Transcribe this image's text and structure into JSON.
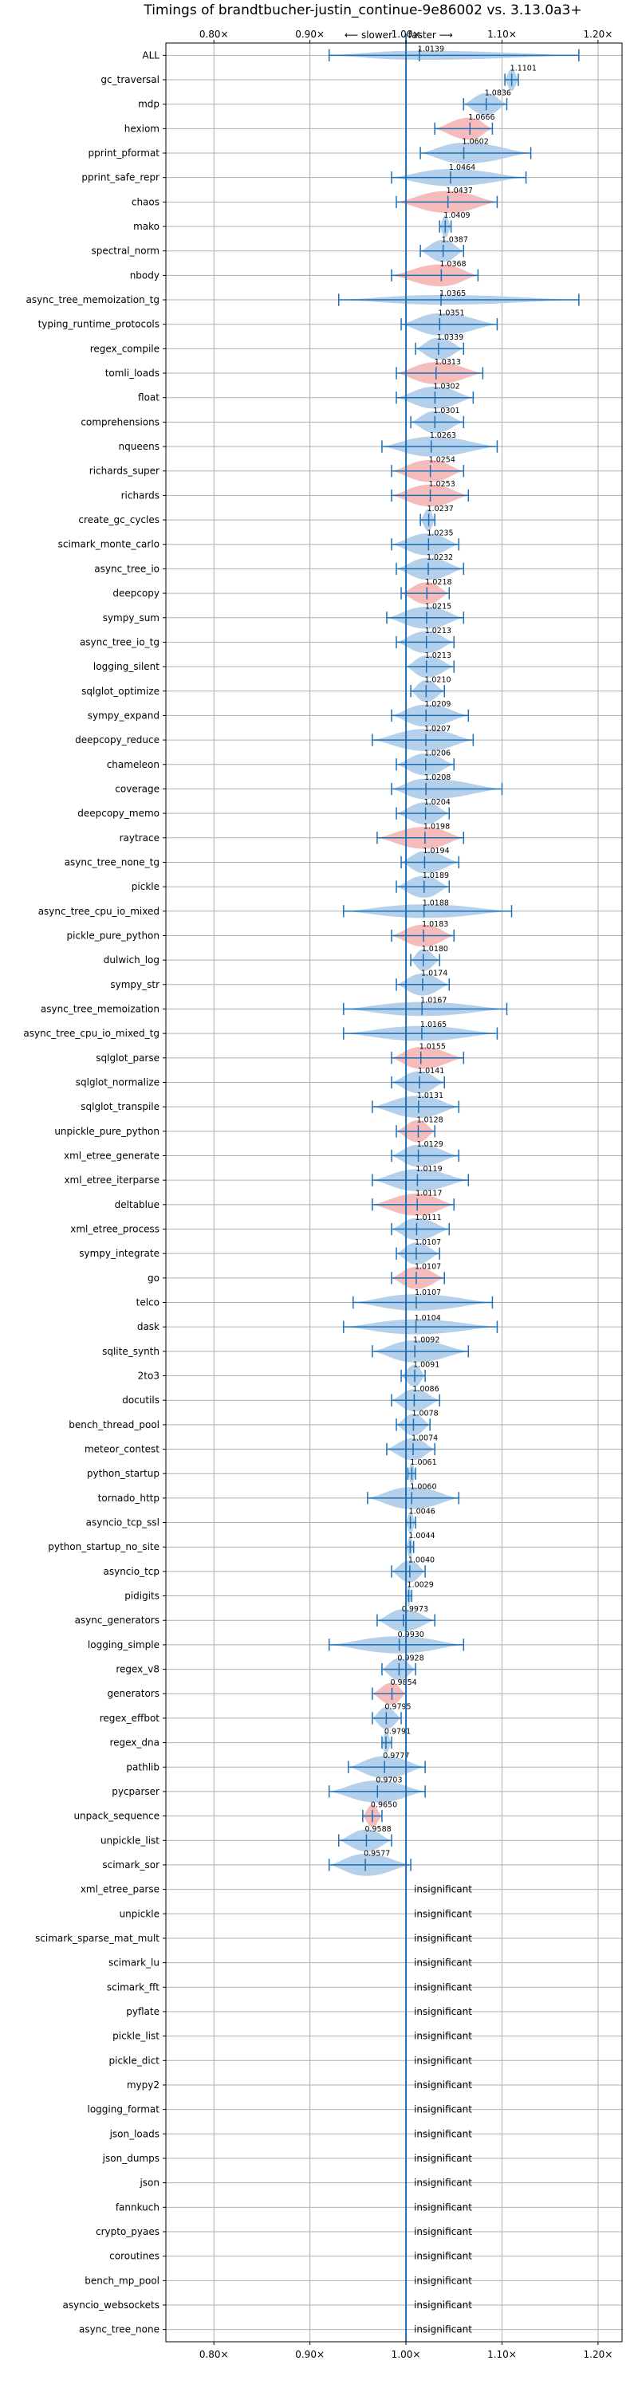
{
  "chart_data": {
    "type": "violin",
    "title": "Timings of brandtbucher-justin_continue-9e86002 vs. 3.13.0a3+",
    "subtitle_left": "⟵ slower",
    "subtitle_right": "faster ⟶",
    "xlim": [
      0.75,
      1.225
    ],
    "x_ticks": [
      0.8,
      0.9,
      1.0,
      1.1,
      1.2
    ],
    "x_tick_labels": [
      "0.80×",
      "0.90×",
      "1.00×",
      "1.10×",
      "1.20×"
    ],
    "grid": true,
    "significant_color": "#a8c8e6",
    "slower_color": "#f4b0b0",
    "line_color": "#1f6fb4",
    "insignificant_label": "insignificant",
    "benchmarks": [
      {
        "name": "ALL",
        "value": 1.0139,
        "label": "1.0139",
        "lo": 0.92,
        "hi": 1.18
      },
      {
        "name": "gc_traversal",
        "value": 1.1101,
        "label": "1.1101",
        "lo": 1.103,
        "hi": 1.117
      },
      {
        "name": "mdp",
        "value": 1.0836,
        "label": "1.0836",
        "lo": 1.06,
        "hi": 1.105
      },
      {
        "name": "hexiom",
        "value": 1.0666,
        "label": "1.0666",
        "lo": 1.03,
        "hi": 1.09
      },
      {
        "name": "pprint_pformat",
        "value": 1.0602,
        "label": "1.0602",
        "lo": 1.015,
        "hi": 1.13
      },
      {
        "name": "pprint_safe_repr",
        "value": 1.0464,
        "label": "1.0464",
        "lo": 0.985,
        "hi": 1.125
      },
      {
        "name": "chaos",
        "value": 1.0437,
        "label": "1.0437",
        "lo": 0.99,
        "hi": 1.095
      },
      {
        "name": "mako",
        "value": 1.0409,
        "label": "1.0409",
        "lo": 1.035,
        "hi": 1.047
      },
      {
        "name": "spectral_norm",
        "value": 1.0387,
        "label": "1.0387",
        "lo": 1.015,
        "hi": 1.06
      },
      {
        "name": "nbody",
        "value": 1.0368,
        "label": "1.0368",
        "lo": 0.985,
        "hi": 1.075
      },
      {
        "name": "async_tree_memoization_tg",
        "value": 1.0365,
        "label": "1.0365",
        "lo": 0.93,
        "hi": 1.18
      },
      {
        "name": "typing_runtime_protocols",
        "value": 1.0351,
        "label": "1.0351",
        "lo": 0.995,
        "hi": 1.095
      },
      {
        "name": "regex_compile",
        "value": 1.0339,
        "label": "1.0339",
        "lo": 1.01,
        "hi": 1.06
      },
      {
        "name": "tomli_loads",
        "value": 1.0313,
        "label": "1.0313",
        "lo": 0.99,
        "hi": 1.08
      },
      {
        "name": "float",
        "value": 1.0302,
        "label": "1.0302",
        "lo": 0.99,
        "hi": 1.07
      },
      {
        "name": "comprehensions",
        "value": 1.0301,
        "label": "1.0301",
        "lo": 1.005,
        "hi": 1.06
      },
      {
        "name": "nqueens",
        "value": 1.0263,
        "label": "1.0263",
        "lo": 0.975,
        "hi": 1.095
      },
      {
        "name": "richards_super",
        "value": 1.0254,
        "label": "1.0254",
        "lo": 0.985,
        "hi": 1.06
      },
      {
        "name": "richards",
        "value": 1.0253,
        "label": "1.0253",
        "lo": 0.985,
        "hi": 1.065
      },
      {
        "name": "create_gc_cycles",
        "value": 1.0237,
        "label": "1.0237",
        "lo": 1.015,
        "hi": 1.03
      },
      {
        "name": "scimark_monte_carlo",
        "value": 1.0235,
        "label": "1.0235",
        "lo": 0.985,
        "hi": 1.055
      },
      {
        "name": "async_tree_io",
        "value": 1.0232,
        "label": "1.0232",
        "lo": 0.99,
        "hi": 1.06
      },
      {
        "name": "deepcopy",
        "value": 1.0218,
        "label": "1.0218",
        "lo": 0.995,
        "hi": 1.045
      },
      {
        "name": "sympy_sum",
        "value": 1.0215,
        "label": "1.0215",
        "lo": 0.98,
        "hi": 1.06
      },
      {
        "name": "async_tree_io_tg",
        "value": 1.0213,
        "label": "1.0213",
        "lo": 0.99,
        "hi": 1.05
      },
      {
        "name": "logging_silent",
        "value": 1.0213,
        "label": "1.0213",
        "lo": 1.0,
        "hi": 1.05
      },
      {
        "name": "sqlglot_optimize",
        "value": 1.021,
        "label": "1.0210",
        "lo": 1.005,
        "hi": 1.04
      },
      {
        "name": "sympy_expand",
        "value": 1.0209,
        "label": "1.0209",
        "lo": 0.985,
        "hi": 1.065
      },
      {
        "name": "deepcopy_reduce",
        "value": 1.0207,
        "label": "1.0207",
        "lo": 0.965,
        "hi": 1.07
      },
      {
        "name": "chameleon",
        "value": 1.0206,
        "label": "1.0206",
        "lo": 0.99,
        "hi": 1.05
      },
      {
        "name": "coverage",
        "value": 1.0208,
        "label": "1.0208",
        "lo": 0.985,
        "hi": 1.1
      },
      {
        "name": "deepcopy_memo",
        "value": 1.0204,
        "label": "1.0204",
        "lo": 0.99,
        "hi": 1.045
      },
      {
        "name": "raytrace",
        "value": 1.0198,
        "label": "1.0198",
        "lo": 0.97,
        "hi": 1.06
      },
      {
        "name": "async_tree_none_tg",
        "value": 1.0194,
        "label": "1.0194",
        "lo": 0.995,
        "hi": 1.055
      },
      {
        "name": "pickle",
        "value": 1.0189,
        "label": "1.0189",
        "lo": 0.99,
        "hi": 1.045
      },
      {
        "name": "async_tree_cpu_io_mixed",
        "value": 1.0188,
        "label": "1.0188",
        "lo": 0.935,
        "hi": 1.11
      },
      {
        "name": "pickle_pure_python",
        "value": 1.0183,
        "label": "1.0183",
        "lo": 0.985,
        "hi": 1.05
      },
      {
        "name": "dulwich_log",
        "value": 1.018,
        "label": "1.0180",
        "lo": 1.005,
        "hi": 1.035
      },
      {
        "name": "sympy_str",
        "value": 1.0174,
        "label": "1.0174",
        "lo": 0.99,
        "hi": 1.045
      },
      {
        "name": "async_tree_memoization",
        "value": 1.0167,
        "label": "1.0167",
        "lo": 0.935,
        "hi": 1.105
      },
      {
        "name": "async_tree_cpu_io_mixed_tg",
        "value": 1.0165,
        "label": "1.0165",
        "lo": 0.935,
        "hi": 1.095
      },
      {
        "name": "sqlglot_parse",
        "value": 1.0155,
        "label": "1.0155",
        "lo": 0.985,
        "hi": 1.06
      },
      {
        "name": "sqlglot_normalize",
        "value": 1.0141,
        "label": "1.0141",
        "lo": 0.985,
        "hi": 1.04
      },
      {
        "name": "sqlglot_transpile",
        "value": 1.0131,
        "label": "1.0131",
        "lo": 0.965,
        "hi": 1.055
      },
      {
        "name": "unpickle_pure_python",
        "value": 1.0128,
        "label": "1.0128",
        "lo": 0.99,
        "hi": 1.03
      },
      {
        "name": "xml_etree_generate",
        "value": 1.0129,
        "label": "1.0129",
        "lo": 0.985,
        "hi": 1.055
      },
      {
        "name": "xml_etree_iterparse",
        "value": 1.0119,
        "label": "1.0119",
        "lo": 0.965,
        "hi": 1.065
      },
      {
        "name": "deltablue",
        "value": 1.0117,
        "label": "1.0117",
        "lo": 0.965,
        "hi": 1.05
      },
      {
        "name": "xml_etree_process",
        "value": 1.0111,
        "label": "1.0111",
        "lo": 0.985,
        "hi": 1.045
      },
      {
        "name": "sympy_integrate",
        "value": 1.0107,
        "label": "1.0107",
        "lo": 0.99,
        "hi": 1.035
      },
      {
        "name": "go",
        "value": 1.0107,
        "label": "1.0107",
        "lo": 0.985,
        "hi": 1.04
      },
      {
        "name": "telco",
        "value": 1.0107,
        "label": "1.0107",
        "lo": 0.945,
        "hi": 1.09
      },
      {
        "name": "dask",
        "value": 1.0104,
        "label": "1.0104",
        "lo": 0.935,
        "hi": 1.095
      },
      {
        "name": "sqlite_synth",
        "value": 1.0092,
        "label": "1.0092",
        "lo": 0.965,
        "hi": 1.065
      },
      {
        "name": "2to3",
        "value": 1.0091,
        "label": "1.0091",
        "lo": 0.995,
        "hi": 1.02
      },
      {
        "name": "docutils",
        "value": 1.0086,
        "label": "1.0086",
        "lo": 0.985,
        "hi": 1.035
      },
      {
        "name": "bench_thread_pool",
        "value": 1.0078,
        "label": "1.0078",
        "lo": 0.99,
        "hi": 1.025
      },
      {
        "name": "meteor_contest",
        "value": 1.0074,
        "label": "1.0074",
        "lo": 0.98,
        "hi": 1.03
      },
      {
        "name": "python_startup",
        "value": 1.0061,
        "label": "1.0061",
        "lo": 1.002,
        "hi": 1.01
      },
      {
        "name": "tornado_http",
        "value": 1.006,
        "label": "1.0060",
        "lo": 0.96,
        "hi": 1.055
      },
      {
        "name": "asyncio_tcp_ssl",
        "value": 1.0046,
        "label": "1.0046",
        "lo": 1.0,
        "hi": 1.01
      },
      {
        "name": "python_startup_no_site",
        "value": 1.0044,
        "label": "1.0044",
        "lo": 1.0,
        "hi": 1.008
      },
      {
        "name": "asyncio_tcp",
        "value": 1.004,
        "label": "1.0040",
        "lo": 0.985,
        "hi": 1.02
      },
      {
        "name": "pidigits",
        "value": 1.0029,
        "label": "1.0029",
        "lo": 1.0,
        "hi": 1.006
      },
      {
        "name": "async_generators",
        "value": 0.9973,
        "label": "0.9973",
        "lo": 0.97,
        "hi": 1.03
      },
      {
        "name": "logging_simple",
        "value": 0.993,
        "label": "0.9930",
        "lo": 0.92,
        "hi": 1.06
      },
      {
        "name": "regex_v8",
        "value": 0.9928,
        "label": "0.9928",
        "lo": 0.975,
        "hi": 1.01
      },
      {
        "name": "generators",
        "value": 0.9854,
        "label": "0.9854",
        "lo": 0.965,
        "hi": 1.0
      },
      {
        "name": "regex_effbot",
        "value": 0.9795,
        "label": "0.9795",
        "lo": 0.965,
        "hi": 0.995
      },
      {
        "name": "regex_dna",
        "value": 0.9791,
        "label": "0.9791",
        "lo": 0.975,
        "hi": 0.985
      },
      {
        "name": "pathlib",
        "value": 0.9777,
        "label": "0.9777",
        "lo": 0.94,
        "hi": 1.02
      },
      {
        "name": "pycparser",
        "value": 0.9703,
        "label": "0.9703",
        "lo": 0.92,
        "hi": 1.02
      },
      {
        "name": "unpack_sequence",
        "value": 0.965,
        "label": "0.9650",
        "lo": 0.955,
        "hi": 0.975
      },
      {
        "name": "unpickle_list",
        "value": 0.9588,
        "label": "0.9588",
        "lo": 0.93,
        "hi": 0.985
      },
      {
        "name": "scimark_sor",
        "value": 0.9577,
        "label": "0.9577",
        "lo": 0.92,
        "hi": 1.005
      },
      {
        "name": "xml_etree_parse",
        "insignificant": true
      },
      {
        "name": "unpickle",
        "insignificant": true
      },
      {
        "name": "scimark_sparse_mat_mult",
        "insignificant": true
      },
      {
        "name": "scimark_lu",
        "insignificant": true
      },
      {
        "name": "scimark_fft",
        "insignificant": true
      },
      {
        "name": "pyflate",
        "insignificant": true
      },
      {
        "name": "pickle_list",
        "insignificant": true
      },
      {
        "name": "pickle_dict",
        "insignificant": true
      },
      {
        "name": "mypy2",
        "insignificant": true
      },
      {
        "name": "logging_format",
        "insignificant": true
      },
      {
        "name": "json_loads",
        "insignificant": true
      },
      {
        "name": "json_dumps",
        "insignificant": true
      },
      {
        "name": "json",
        "insignificant": true
      },
      {
        "name": "fannkuch",
        "insignificant": true
      },
      {
        "name": "crypto_pyaes",
        "insignificant": true
      },
      {
        "name": "coroutines",
        "insignificant": true
      },
      {
        "name": "bench_mp_pool",
        "insignificant": true
      },
      {
        "name": "asyncio_websockets",
        "insignificant": true
      },
      {
        "name": "async_tree_none",
        "insignificant": true
      }
    ],
    "slower_highlighted": [
      "hexiom",
      "chaos",
      "nbody",
      "tomli_loads",
      "richards_super",
      "richards",
      "deepcopy",
      "raytrace",
      "pickle_pure_python",
      "sqlglot_parse",
      "unpickle_pure_python",
      "deltablue",
      "go",
      "generators",
      "unpack_sequence"
    ]
  }
}
